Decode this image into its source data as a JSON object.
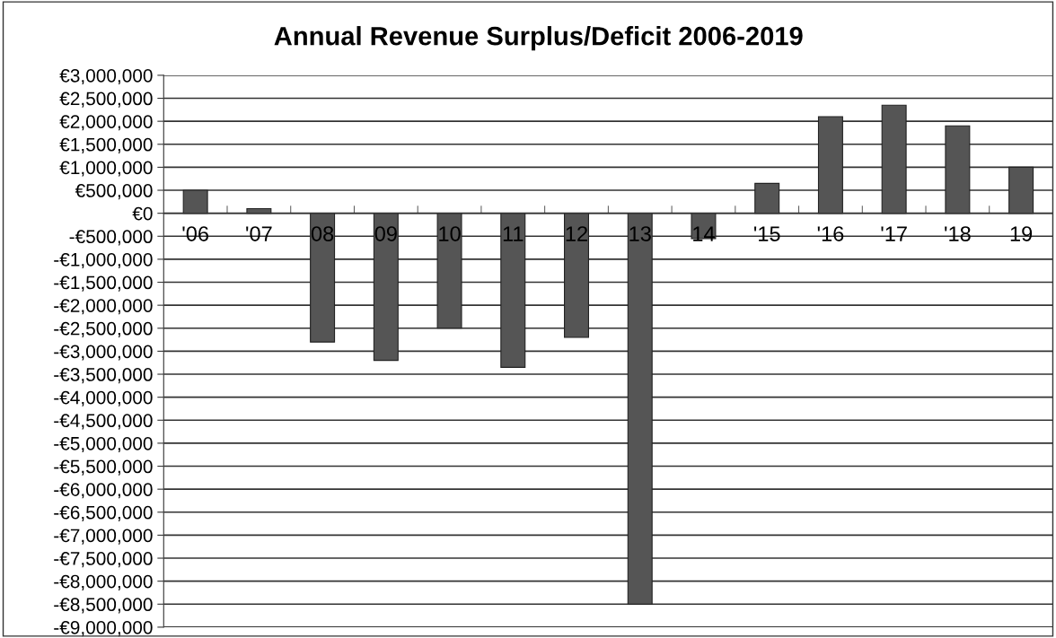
{
  "chart_data": {
    "type": "bar",
    "title": "Annual Revenue Surplus/Deficit 2006-2019",
    "categories": [
      "'06",
      "'07",
      "08",
      "09",
      "10",
      "11",
      "12",
      "13",
      "14",
      "'15",
      "'16",
      "'17",
      "'18",
      "19"
    ],
    "values": [
      500000,
      100000,
      -2800000,
      -3200000,
      -2500000,
      -3350000,
      -2700000,
      -8500000,
      -550000,
      650000,
      2100000,
      2350000,
      1900000,
      1000000
    ],
    "color": "#555555",
    "ylim": [
      -9000000,
      3000000
    ],
    "yticks": [
      {
        "value": 3000000,
        "label": "€3,000,000"
      },
      {
        "value": 2500000,
        "label": "€2,500,000"
      },
      {
        "value": 2000000,
        "label": "€2,000,000"
      },
      {
        "value": 1500000,
        "label": "€1,500,000"
      },
      {
        "value": 1000000,
        "label": "€1,000,000"
      },
      {
        "value": 500000,
        "label": "€500,000"
      },
      {
        "value": 0,
        "label": "€0"
      },
      {
        "value": -500000,
        "label": "-€500,000"
      },
      {
        "value": -1000000,
        "label": "-€1,000,000"
      },
      {
        "value": -1500000,
        "label": "-€1,500,000"
      },
      {
        "value": -2000000,
        "label": "-€2,000,000"
      },
      {
        "value": -2500000,
        "label": "-€2,500,000"
      },
      {
        "value": -3000000,
        "label": "-€3,000,000"
      },
      {
        "value": -3500000,
        "label": "-€3,500,000"
      },
      {
        "value": -4000000,
        "label": "-€4,000,000"
      },
      {
        "value": -4500000,
        "label": "-€4,500,000"
      },
      {
        "value": -5000000,
        "label": "-€5,000,000"
      },
      {
        "value": -5500000,
        "label": "-€5,500,000"
      },
      {
        "value": -6000000,
        "label": "-€6,000,000"
      },
      {
        "value": -6500000,
        "label": "-€6,500,000"
      },
      {
        "value": -7000000,
        "label": "-€7,000,000"
      },
      {
        "value": -7500000,
        "label": "-€7,500,000"
      },
      {
        "value": -8000000,
        "label": "-€8,000,000"
      },
      {
        "value": -8500000,
        "label": "-€8,500,000"
      },
      {
        "value": -9000000,
        "label": "-€9,000,000"
      }
    ],
    "grid": "y",
    "legend": false
  }
}
